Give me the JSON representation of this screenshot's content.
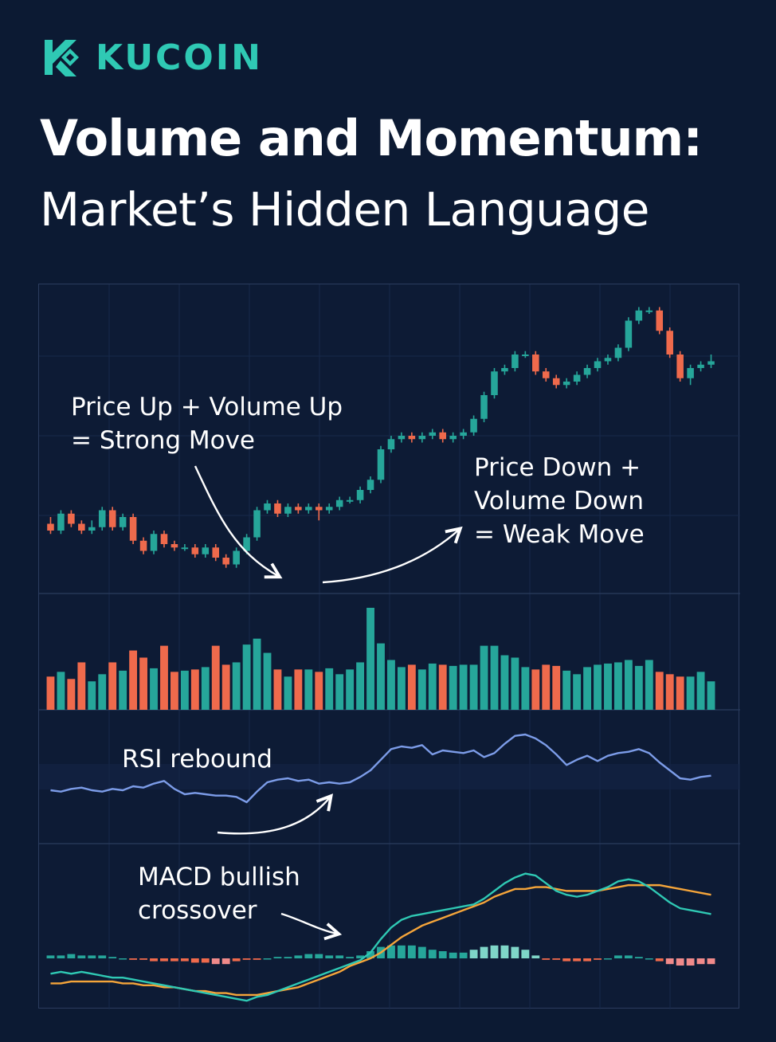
{
  "brand": {
    "name": "KUCOIN",
    "logo_icon": "kucoin-logo-icon",
    "color": "#2fc9b4"
  },
  "title": {
    "line1": "Volume and Momentum:",
    "line2": "Market’s Hidden Language"
  },
  "colors": {
    "up": "#26a69a",
    "down": "#ef6a4c",
    "rsi": "#7c9ce8",
    "macd": "#2fc9b4",
    "signal": "#f5a53a",
    "background": "#0c1a33"
  },
  "annotations": {
    "strong_move": [
      "Price Up + Volume Up",
      "= Strong Move"
    ],
    "weak_move": [
      "Price Down +",
      "Volume Down",
      "= Weak Move"
    ],
    "rsi": "RSI rebound",
    "macd": [
      "MACD bullish",
      "crossover"
    ]
  },
  "chart_data": {
    "type": "candlestick",
    "panels": [
      "price",
      "volume",
      "rsi",
      "macd"
    ],
    "price": {
      "open": [
        34,
        32,
        37,
        34,
        32,
        33,
        38,
        33,
        36,
        29,
        26,
        31,
        28,
        27,
        27,
        25,
        27,
        24,
        22,
        26,
        30,
        38,
        40,
        37,
        39,
        38,
        39,
        38,
        39,
        41,
        41,
        44,
        47,
        56,
        59,
        60,
        59,
        60,
        61,
        59,
        60,
        61,
        65,
        72,
        79,
        80,
        84,
        84,
        79,
        77,
        75,
        76,
        78,
        80,
        82,
        83,
        86,
        94,
        97,
        97,
        91,
        84,
        77,
        80,
        81
      ],
      "close": [
        32,
        37,
        34,
        32,
        33,
        38,
        33,
        36,
        29,
        26,
        31,
        28,
        27,
        27,
        25,
        27,
        24,
        22,
        26,
        30,
        38,
        40,
        37,
        39,
        38,
        39,
        38,
        39,
        41,
        41,
        44,
        47,
        56,
        59,
        60,
        59,
        60,
        61,
        59,
        60,
        61,
        65,
        72,
        79,
        80,
        84,
        84,
        79,
        77,
        75,
        76,
        78,
        80,
        82,
        83,
        86,
        94,
        97,
        97,
        91,
        84,
        77,
        80,
        81,
        82
      ],
      "high": [
        36,
        38,
        38,
        35,
        35,
        39,
        39,
        37,
        37,
        30,
        32,
        32,
        29,
        28,
        28,
        28,
        28,
        25,
        27,
        31,
        39,
        41,
        41,
        40,
        40,
        40,
        40,
        40,
        42,
        42,
        45,
        48,
        57,
        60,
        61,
        61,
        61,
        62,
        62,
        61,
        62,
        66,
        73,
        80,
        81,
        85,
        85,
        85,
        80,
        78,
        77,
        79,
        81,
        83,
        84,
        87,
        95,
        98,
        98,
        98,
        92,
        85,
        81,
        82,
        84
      ],
      "low": [
        31,
        31,
        33,
        31,
        31,
        32,
        32,
        32,
        28,
        25,
        25,
        27,
        26,
        26,
        24,
        24,
        23,
        21,
        21,
        25,
        29,
        37,
        36,
        36,
        37,
        37,
        35,
        37,
        38,
        40,
        40,
        43,
        46,
        55,
        58,
        58,
        58,
        59,
        58,
        58,
        59,
        60,
        64,
        71,
        78,
        79,
        83,
        78,
        76,
        74,
        74,
        75,
        77,
        79,
        81,
        82,
        85,
        93,
        96,
        90,
        83,
        76,
        75,
        79,
        80
      ]
    },
    "volume": [
      28,
      32,
      26,
      40,
      24,
      30,
      40,
      33,
      50,
      44,
      35,
      54,
      32,
      33,
      34,
      36,
      54,
      38,
      40,
      55,
      60,
      48,
      34,
      28,
      34,
      34,
      32,
      35,
      30,
      34,
      40,
      86,
      56,
      42,
      36,
      38,
      34,
      39,
      38,
      37,
      38,
      38,
      54,
      54,
      46,
      44,
      36,
      34,
      38,
      37,
      33,
      30,
      36,
      38,
      39,
      40,
      42,
      37,
      42,
      32,
      30,
      28,
      28,
      32,
      24
    ],
    "rsi": [
      47,
      46,
      48,
      49,
      47,
      46,
      48,
      47,
      50,
      49,
      52,
      54,
      48,
      44,
      45,
      44,
      43,
      43,
      42,
      38,
      46,
      53,
      55,
      56,
      54,
      55,
      52,
      53,
      52,
      53,
      57,
      62,
      70,
      78,
      80,
      79,
      81,
      74,
      77,
      76,
      75,
      77,
      72,
      75,
      82,
      88,
      89,
      86,
      81,
      74,
      66,
      70,
      73,
      69,
      73,
      75,
      76,
      78,
      75,
      68,
      62,
      56,
      55,
      57,
      58
    ],
    "macd": {
      "macd_line": [
        -8,
        -7,
        -8,
        -7,
        -8,
        -9,
        -10,
        -10,
        -11,
        -12,
        -13,
        -14,
        -15,
        -16,
        -17,
        -18,
        -19,
        -20,
        -21,
        -22,
        -20,
        -19,
        -17,
        -15,
        -13,
        -11,
        -9,
        -7,
        -5,
        -3,
        -1,
        3,
        10,
        16,
        20,
        22,
        23,
        24,
        25,
        26,
        27,
        28,
        31,
        35,
        39,
        42,
        44,
        43,
        39,
        35,
        33,
        32,
        33,
        35,
        37,
        40,
        41,
        40,
        37,
        33,
        29,
        26,
        25,
        24,
        23
      ],
      "signal_line": [
        -13,
        -13,
        -12,
        -12,
        -12,
        -12,
        -12,
        -13,
        -13,
        -14,
        -14,
        -15,
        -15,
        -16,
        -17,
        -17,
        -18,
        -18,
        -19,
        -19,
        -19,
        -18,
        -17,
        -16,
        -15,
        -13,
        -11,
        -9,
        -7,
        -4,
        -2,
        0,
        3,
        7,
        11,
        14,
        17,
        19,
        21,
        23,
        25,
        27,
        29,
        32,
        34,
        36,
        36,
        37,
        37,
        36,
        35,
        35,
        35,
        35,
        36,
        37,
        38,
        38,
        38,
        38,
        37,
        36,
        35,
        34,
        33
      ],
      "histogram": [
        2,
        2,
        3,
        2,
        2,
        2,
        1,
        0,
        -1,
        -1,
        -2,
        -2,
        -2,
        -2,
        -3,
        -3,
        -4,
        -4,
        -2,
        -1,
        -1,
        0,
        1,
        1,
        2,
        3,
        3,
        2,
        2,
        1,
        2,
        5,
        8,
        9,
        9,
        9,
        8,
        6,
        5,
        4,
        4,
        6,
        8,
        9,
        9,
        8,
        6,
        2,
        -1,
        -1,
        -2,
        -2,
        -2,
        -1,
        0,
        2,
        2,
        1,
        0,
        -2,
        -4,
        -5,
        -5,
        -4,
        -4
      ]
    }
  }
}
